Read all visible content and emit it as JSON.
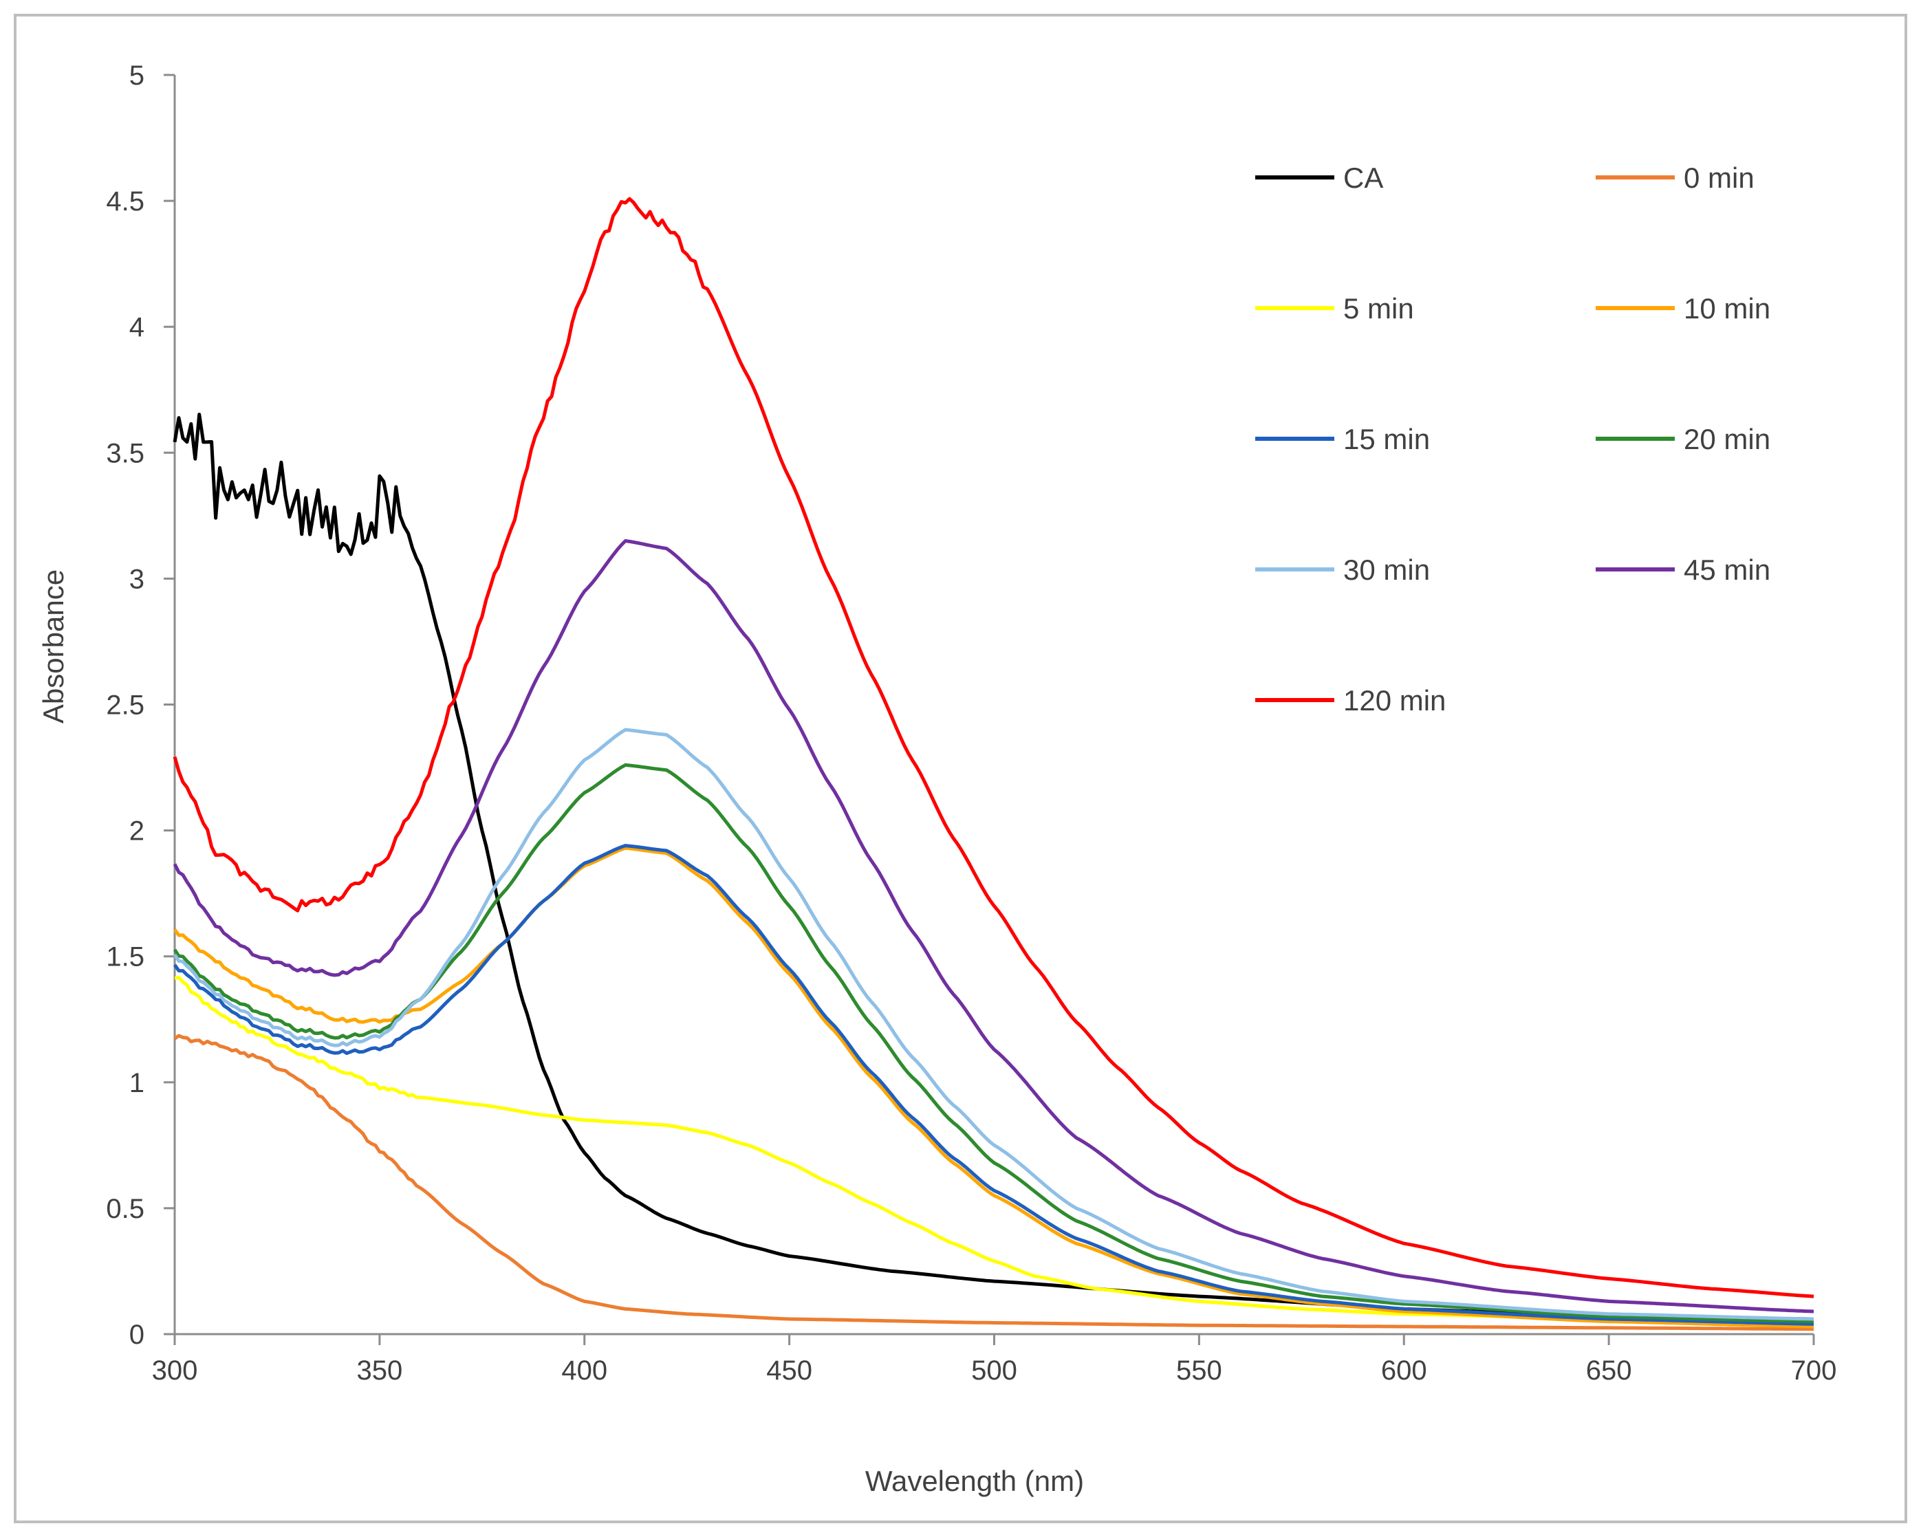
{
  "chart_data": {
    "type": "line",
    "title": "",
    "xlabel": "Wavelength (nm)",
    "ylabel": "Absorbance",
    "xlim": [
      300,
      700
    ],
    "ylim": [
      0,
      5
    ],
    "xticks": [
      300,
      350,
      400,
      450,
      500,
      550,
      600,
      650,
      700
    ],
    "yticks": [
      0,
      0.5,
      1,
      1.5,
      2,
      2.5,
      3,
      3.5,
      4,
      4.5,
      5
    ],
    "grid": false,
    "legend_position": "top-right",
    "series": [
      {
        "name": "CA",
        "color": "#000000",
        "noisy_below": 355,
        "points": [
          [
            300,
            3.55
          ],
          [
            302,
            3.62
          ],
          [
            305,
            3.55
          ],
          [
            308,
            3.6
          ],
          [
            310,
            3.35
          ],
          [
            315,
            3.4
          ],
          [
            320,
            3.3
          ],
          [
            325,
            3.4
          ],
          [
            330,
            3.25
          ],
          [
            335,
            3.28
          ],
          [
            340,
            3.2
          ],
          [
            345,
            3.15
          ],
          [
            350,
            3.3
          ],
          [
            355,
            3.25
          ],
          [
            360,
            3.05
          ],
          [
            365,
            2.75
          ],
          [
            370,
            2.4
          ],
          [
            375,
            2.0
          ],
          [
            380,
            1.65
          ],
          [
            385,
            1.32
          ],
          [
            390,
            1.05
          ],
          [
            395,
            0.85
          ],
          [
            400,
            0.72
          ],
          [
            405,
            0.62
          ],
          [
            410,
            0.55
          ],
          [
            420,
            0.46
          ],
          [
            430,
            0.4
          ],
          [
            440,
            0.35
          ],
          [
            450,
            0.31
          ],
          [
            475,
            0.25
          ],
          [
            500,
            0.21
          ],
          [
            550,
            0.15
          ],
          [
            600,
            0.1
          ],
          [
            650,
            0.07
          ],
          [
            700,
            0.06
          ]
        ]
      },
      {
        "name": "0 min",
        "color": "#ed7d31",
        "points": [
          [
            300,
            1.18
          ],
          [
            310,
            1.15
          ],
          [
            320,
            1.1
          ],
          [
            330,
            1.02
          ],
          [
            340,
            0.88
          ],
          [
            350,
            0.73
          ],
          [
            360,
            0.58
          ],
          [
            370,
            0.44
          ],
          [
            380,
            0.32
          ],
          [
            390,
            0.2
          ],
          [
            400,
            0.13
          ],
          [
            410,
            0.1
          ],
          [
            425,
            0.08
          ],
          [
            450,
            0.06
          ],
          [
            500,
            0.045
          ],
          [
            550,
            0.035
          ],
          [
            600,
            0.03
          ],
          [
            650,
            0.025
          ],
          [
            700,
            0.02
          ]
        ]
      },
      {
        "name": "5 min",
        "color": "#ffff00",
        "points": [
          [
            300,
            1.42
          ],
          [
            310,
            1.28
          ],
          [
            320,
            1.19
          ],
          [
            330,
            1.12
          ],
          [
            340,
            1.05
          ],
          [
            350,
            0.98
          ],
          [
            360,
            0.94
          ],
          [
            375,
            0.91
          ],
          [
            390,
            0.87
          ],
          [
            400,
            0.85
          ],
          [
            410,
            0.84
          ],
          [
            420,
            0.83
          ],
          [
            430,
            0.8
          ],
          [
            440,
            0.75
          ],
          [
            450,
            0.68
          ],
          [
            460,
            0.6
          ],
          [
            470,
            0.52
          ],
          [
            480,
            0.44
          ],
          [
            490,
            0.36
          ],
          [
            500,
            0.29
          ],
          [
            510,
            0.23
          ],
          [
            525,
            0.18
          ],
          [
            550,
            0.13
          ],
          [
            575,
            0.1
          ],
          [
            600,
            0.08
          ],
          [
            650,
            0.06
          ],
          [
            700,
            0.05
          ]
        ]
      },
      {
        "name": "10 min",
        "color": "#ffa500",
        "points": [
          [
            300,
            1.6
          ],
          [
            310,
            1.48
          ],
          [
            320,
            1.38
          ],
          [
            330,
            1.3
          ],
          [
            340,
            1.25
          ],
          [
            350,
            1.24
          ],
          [
            360,
            1.29
          ],
          [
            370,
            1.4
          ],
          [
            380,
            1.55
          ],
          [
            390,
            1.72
          ],
          [
            400,
            1.86
          ],
          [
            410,
            1.93
          ],
          [
            420,
            1.91
          ],
          [
            430,
            1.8
          ],
          [
            440,
            1.63
          ],
          [
            450,
            1.43
          ],
          [
            460,
            1.22
          ],
          [
            470,
            1.02
          ],
          [
            480,
            0.84
          ],
          [
            490,
            0.68
          ],
          [
            500,
            0.55
          ],
          [
            520,
            0.36
          ],
          [
            540,
            0.24
          ],
          [
            560,
            0.16
          ],
          [
            580,
            0.12
          ],
          [
            600,
            0.09
          ],
          [
            650,
            0.05
          ],
          [
            700,
            0.03
          ]
        ]
      },
      {
        "name": "15 min",
        "color": "#1f5fbf",
        "points": [
          [
            300,
            1.46
          ],
          [
            310,
            1.33
          ],
          [
            320,
            1.22
          ],
          [
            330,
            1.15
          ],
          [
            340,
            1.12
          ],
          [
            350,
            1.13
          ],
          [
            360,
            1.22
          ],
          [
            370,
            1.37
          ],
          [
            380,
            1.55
          ],
          [
            390,
            1.72
          ],
          [
            400,
            1.87
          ],
          [
            410,
            1.94
          ],
          [
            420,
            1.92
          ],
          [
            430,
            1.82
          ],
          [
            440,
            1.65
          ],
          [
            450,
            1.45
          ],
          [
            460,
            1.24
          ],
          [
            470,
            1.04
          ],
          [
            480,
            0.86
          ],
          [
            490,
            0.7
          ],
          [
            500,
            0.57
          ],
          [
            520,
            0.38
          ],
          [
            540,
            0.25
          ],
          [
            560,
            0.17
          ],
          [
            580,
            0.13
          ],
          [
            600,
            0.1
          ],
          [
            650,
            0.06
          ],
          [
            700,
            0.04
          ]
        ]
      },
      {
        "name": "20 min",
        "color": "#2e8b2e",
        "points": [
          [
            300,
            1.52
          ],
          [
            310,
            1.37
          ],
          [
            320,
            1.28
          ],
          [
            330,
            1.21
          ],
          [
            340,
            1.18
          ],
          [
            350,
            1.2
          ],
          [
            360,
            1.33
          ],
          [
            370,
            1.52
          ],
          [
            380,
            1.75
          ],
          [
            390,
            1.97
          ],
          [
            400,
            2.15
          ],
          [
            410,
            2.26
          ],
          [
            420,
            2.24
          ],
          [
            430,
            2.12
          ],
          [
            440,
            1.93
          ],
          [
            450,
            1.7
          ],
          [
            460,
            1.46
          ],
          [
            470,
            1.23
          ],
          [
            480,
            1.02
          ],
          [
            490,
            0.84
          ],
          [
            500,
            0.68
          ],
          [
            520,
            0.45
          ],
          [
            540,
            0.3
          ],
          [
            560,
            0.21
          ],
          [
            580,
            0.15
          ],
          [
            600,
            0.12
          ],
          [
            650,
            0.07
          ],
          [
            700,
            0.05
          ]
        ]
      },
      {
        "name": "30 min",
        "color": "#8fbfe6",
        "points": [
          [
            300,
            1.5
          ],
          [
            310,
            1.35
          ],
          [
            320,
            1.25
          ],
          [
            330,
            1.18
          ],
          [
            340,
            1.15
          ],
          [
            350,
            1.18
          ],
          [
            360,
            1.33
          ],
          [
            370,
            1.55
          ],
          [
            380,
            1.82
          ],
          [
            390,
            2.07
          ],
          [
            400,
            2.28
          ],
          [
            410,
            2.4
          ],
          [
            420,
            2.38
          ],
          [
            430,
            2.25
          ],
          [
            440,
            2.05
          ],
          [
            450,
            1.81
          ],
          [
            460,
            1.56
          ],
          [
            470,
            1.32
          ],
          [
            480,
            1.1
          ],
          [
            490,
            0.91
          ],
          [
            500,
            0.75
          ],
          [
            520,
            0.5
          ],
          [
            540,
            0.34
          ],
          [
            560,
            0.24
          ],
          [
            580,
            0.17
          ],
          [
            600,
            0.13
          ],
          [
            650,
            0.08
          ],
          [
            700,
            0.06
          ]
        ]
      },
      {
        "name": "45 min",
        "color": "#7030a0",
        "points": [
          [
            300,
            1.86
          ],
          [
            310,
            1.62
          ],
          [
            320,
            1.5
          ],
          [
            330,
            1.45
          ],
          [
            340,
            1.43
          ],
          [
            350,
            1.48
          ],
          [
            360,
            1.68
          ],
          [
            370,
            1.98
          ],
          [
            380,
            2.32
          ],
          [
            390,
            2.65
          ],
          [
            400,
            2.95
          ],
          [
            410,
            3.15
          ],
          [
            420,
            3.12
          ],
          [
            430,
            2.98
          ],
          [
            440,
            2.76
          ],
          [
            450,
            2.48
          ],
          [
            460,
            2.18
          ],
          [
            470,
            1.88
          ],
          [
            480,
            1.6
          ],
          [
            490,
            1.35
          ],
          [
            500,
            1.13
          ],
          [
            520,
            0.78
          ],
          [
            540,
            0.55
          ],
          [
            560,
            0.4
          ],
          [
            580,
            0.3
          ],
          [
            600,
            0.23
          ],
          [
            625,
            0.17
          ],
          [
            650,
            0.13
          ],
          [
            700,
            0.09
          ]
        ]
      },
      {
        "name": "120 min",
        "color": "#ff0000",
        "points": [
          [
            300,
            2.28
          ],
          [
            305,
            2.1
          ],
          [
            310,
            1.92
          ],
          [
            320,
            1.78
          ],
          [
            330,
            1.7
          ],
          [
            340,
            1.73
          ],
          [
            350,
            1.85
          ],
          [
            360,
            2.15
          ],
          [
            370,
            2.6
          ],
          [
            380,
            3.1
          ],
          [
            390,
            3.65
          ],
          [
            400,
            4.15
          ],
          [
            405,
            4.38
          ],
          [
            410,
            4.5
          ],
          [
            415,
            4.45
          ],
          [
            420,
            4.4
          ],
          [
            425,
            4.3
          ],
          [
            430,
            4.15
          ],
          [
            440,
            3.8
          ],
          [
            450,
            3.4
          ],
          [
            460,
            3.0
          ],
          [
            470,
            2.62
          ],
          [
            480,
            2.28
          ],
          [
            490,
            1.97
          ],
          [
            500,
            1.7
          ],
          [
            510,
            1.46
          ],
          [
            520,
            1.24
          ],
          [
            530,
            1.06
          ],
          [
            540,
            0.9
          ],
          [
            550,
            0.76
          ],
          [
            560,
            0.65
          ],
          [
            575,
            0.52
          ],
          [
            600,
            0.36
          ],
          [
            625,
            0.27
          ],
          [
            650,
            0.22
          ],
          [
            675,
            0.18
          ],
          [
            700,
            0.15
          ]
        ]
      }
    ]
  }
}
